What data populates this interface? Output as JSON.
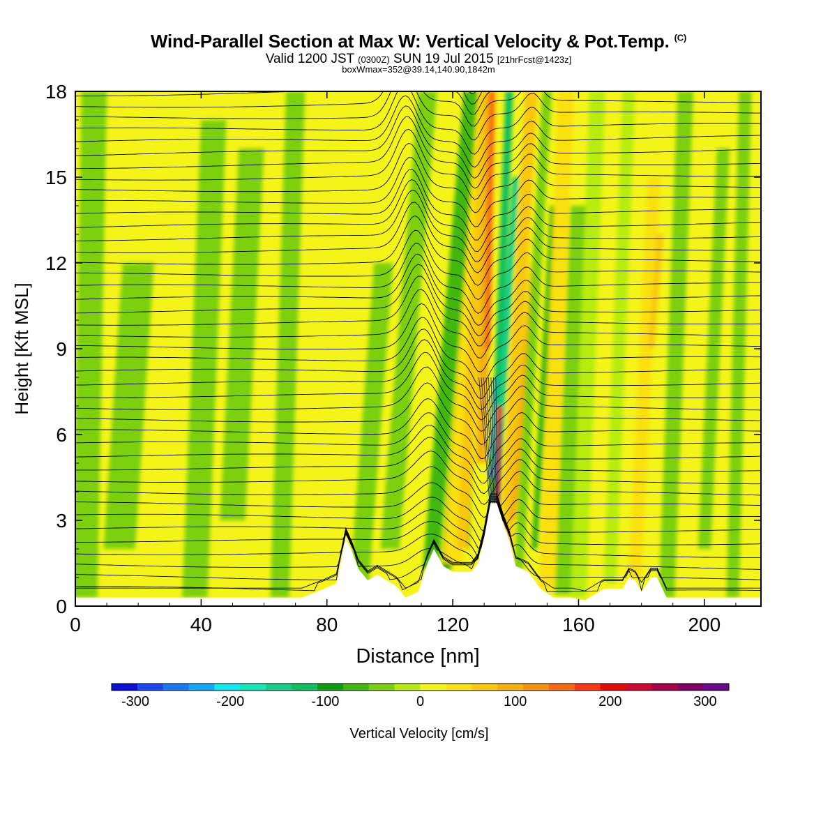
{
  "header": {
    "title": "Wind-Parallel Section at Max W: Vertical Velocity & Pot.Temp.",
    "copyright": "(C)",
    "valid_pre": "Valid 1200 JST",
    "valid_utc": "(0300Z)",
    "valid_date": "SUN 19 Jul 2015",
    "forecast": "[21hrFcst@1423z]",
    "boxinfo": "boxWmax=352@39.14,140.90,1842m"
  },
  "chart_data": {
    "type": "heatmap",
    "title": "Wind-Parallel Section at Max W: Vertical Velocity & Pot.Temp.",
    "xlabel": "Distance [nm]",
    "ylabel": "Height [Kft MSL]",
    "xlim": [
      0,
      218
    ],
    "ylim": [
      0,
      18
    ],
    "x_ticks": [
      "0",
      "40",
      "80",
      "120",
      "160",
      "200"
    ],
    "y_ticks": [
      "0",
      "3",
      "6",
      "9",
      "12",
      "15",
      "18"
    ],
    "colorbar": {
      "label": "Vertical Velocity [cm/s]",
      "range": [
        -325,
        325
      ],
      "ticks": [
        "-300",
        "-200",
        "-100",
        "0",
        "100",
        "200",
        "300"
      ],
      "colors": [
        "#0a10d8",
        "#1a48f0",
        "#1a78f4",
        "#10aaf4",
        "#12e8f0",
        "#14e8b8",
        "#12d088",
        "#10c060",
        "#0c9e10",
        "#40b810",
        "#7cd010",
        "#b8ec10",
        "#f4f418",
        "#fae010",
        "#f8c80c",
        "#f4b00c",
        "#f89010",
        "#f86a10",
        "#f83810",
        "#e80808",
        "#d00830",
        "#a8004a",
        "#800068",
        "#6a0a8c"
      ]
    },
    "contours": "Potential Temperature",
    "max_vertical_velocity": {
      "value": 352,
      "units": "cm/s",
      "x": 134,
      "y": 5
    }
  }
}
